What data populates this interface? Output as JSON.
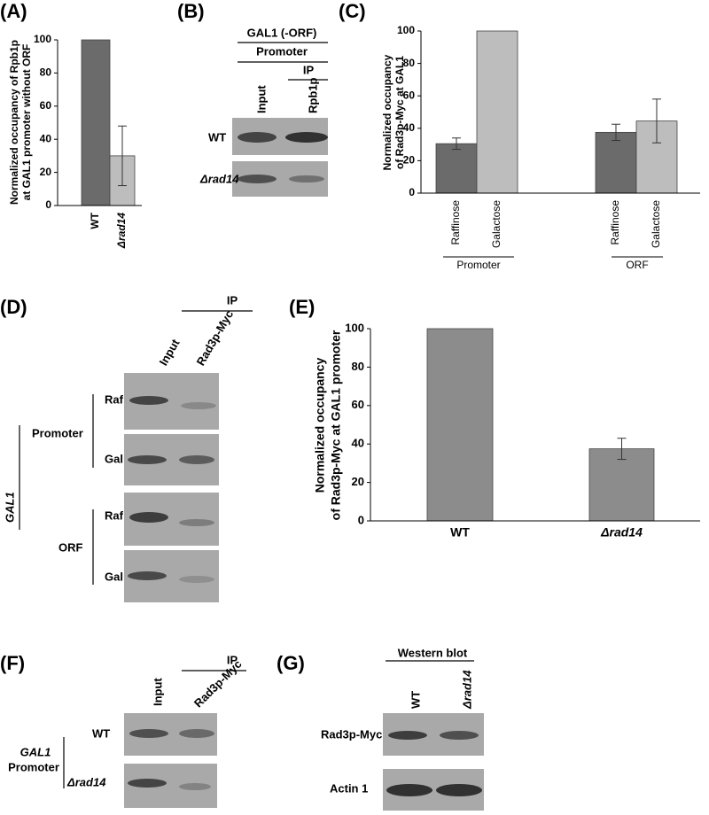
{
  "panel_labels": [
    "(A)",
    "(B)",
    "(C)",
    "(D)",
    "(E)",
    "(F)",
    "(G)"
  ],
  "chart_data": [
    {
      "type": "bar",
      "ylabel": [
        "Normalized occupancy of Rpb1p",
        "at GAL1 promoter without ORF"
      ],
      "categories": [
        "WT",
        "Δrad14"
      ],
      "values": [
        100,
        30
      ],
      "errors": [
        null,
        18
      ],
      "colors": [
        "#6b6b6b",
        "#bdbdbd"
      ],
      "ylim": [
        0,
        100
      ],
      "yticks": [
        0,
        20,
        40,
        60,
        80,
        100
      ]
    },
    {
      "type": "grouped-bar",
      "ylabel": [
        "Normalized occupancy",
        "of Rad3p-Myc at GAL1"
      ],
      "categories": [
        "Promoter",
        "ORF"
      ],
      "series": [
        {
          "name": "Raffinose",
          "color": "#6b6b6b",
          "values": [
            30.5,
            37.5
          ],
          "errors": [
            3.5,
            5
          ]
        },
        {
          "name": "Galactose",
          "color": "#bdbdbd",
          "values": [
            100,
            44.5
          ],
          "errors": [
            null,
            13.5
          ]
        }
      ],
      "ylim": [
        0,
        100
      ],
      "yticks": [
        0,
        20,
        40,
        60,
        80,
        100
      ]
    },
    {
      "type": "bar",
      "ylabel": [
        "Normalized occupancy",
        "of Rad3p-Myc at GAL1 promoter"
      ],
      "categories": [
        "WT",
        "Δrad14"
      ],
      "values": [
        100,
        37.5
      ],
      "errors": [
        null,
        5.5
      ],
      "colors": [
        "#8c8c8c",
        "#8c8c8c"
      ],
      "ylim": [
        0,
        100
      ],
      "yticks": [
        0,
        20,
        40,
        60,
        80,
        100
      ]
    }
  ],
  "blot_b": {
    "title": "GAL1 (-ORF)",
    "region": "Promoter",
    "ip": "IP",
    "columns": [
      "Input",
      "Rpb1p"
    ],
    "rows": [
      "WT",
      "Δrad14"
    ]
  },
  "blot_d": {
    "ip": "IP",
    "columns": [
      "Input",
      "Rad3p-Myc"
    ],
    "gene": "GAL1",
    "regions": [
      "Promoter",
      "ORF"
    ],
    "rows": [
      "Raf",
      "Gal",
      "Raf",
      "Gal"
    ]
  },
  "blot_f": {
    "ip": "IP",
    "columns": [
      "Input",
      "Rad3p-Myc"
    ],
    "gene": "GAL1",
    "region": "Promoter",
    "rows": [
      "WT",
      "Δrad14"
    ]
  },
  "blot_g": {
    "title": "Western blot",
    "columns": [
      "WT",
      "Δrad14"
    ],
    "rows": [
      "Rad3p-Myc",
      "Actin 1"
    ]
  }
}
